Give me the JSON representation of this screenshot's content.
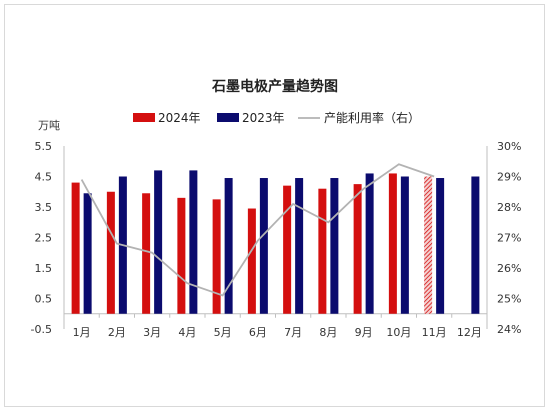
{
  "chart_data": {
    "type": "bar",
    "title": "石墨电极产量趋势图",
    "unit_left": "万吨",
    "categories": [
      "1月",
      "2月",
      "3月",
      "4月",
      "5月",
      "6月",
      "7月",
      "8月",
      "9月",
      "10月",
      "11月",
      "12月"
    ],
    "series": [
      {
        "name": "2024年",
        "type": "bar",
        "axis": "left",
        "color": "#d40f0f",
        "values": [
          4.3,
          4.0,
          3.95,
          3.8,
          3.75,
          3.45,
          4.2,
          4.1,
          4.25,
          4.6,
          4.5,
          null
        ],
        "hatched_categories": [
          "11月"
        ]
      },
      {
        "name": "2023年",
        "type": "bar",
        "axis": "left",
        "color": "#0b0b6e",
        "values": [
          3.95,
          4.5,
          4.7,
          4.7,
          4.45,
          4.45,
          4.45,
          4.45,
          4.6,
          4.5,
          4.45,
          4.5
        ]
      },
      {
        "name": "产能利用率（右）",
        "type": "line",
        "axis": "right",
        "color": "#b3b3b3",
        "values": [
          28.9,
          26.8,
          26.5,
          25.5,
          25.1,
          26.9,
          28.1,
          27.5,
          28.6,
          29.4,
          29.0,
          null
        ]
      }
    ],
    "y_left": {
      "min": -0.5,
      "max": 5.5,
      "ticks": [
        "5.5",
        "4.5",
        "3.5",
        "2.5",
        "1.5",
        "0.5",
        "-0.5"
      ]
    },
    "y_right": {
      "min": 24,
      "max": 30,
      "ticks": [
        "30%",
        "29%",
        "28%",
        "27%",
        "26%",
        "25%",
        "24%"
      ]
    },
    "legend_position": "top",
    "grid": false
  }
}
